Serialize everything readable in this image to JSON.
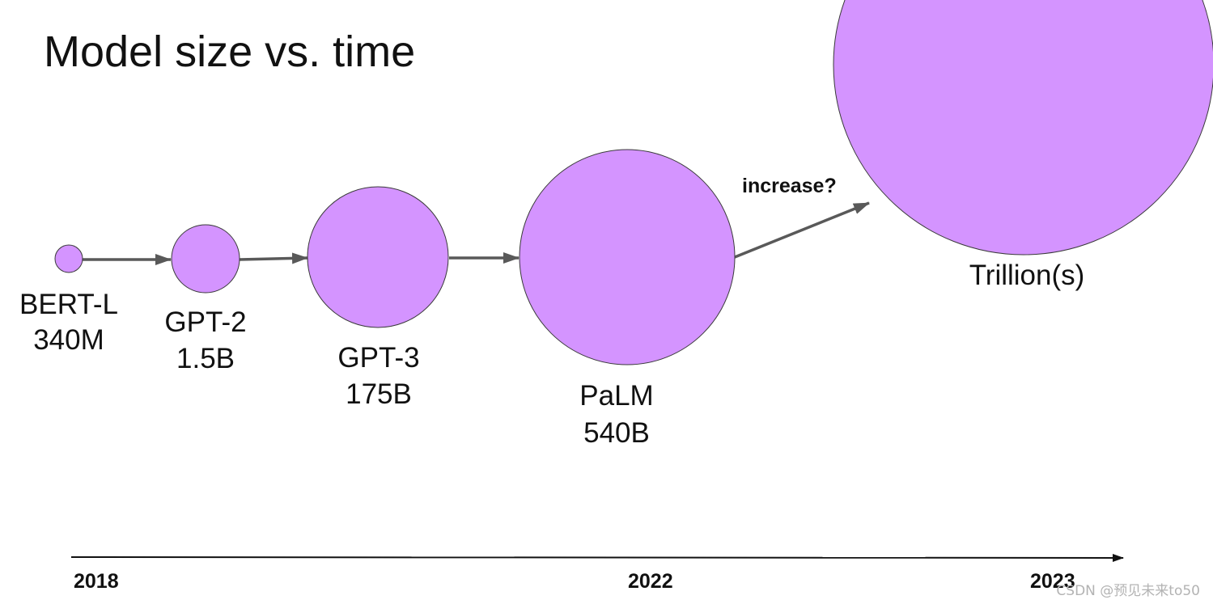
{
  "title": "Model size vs. time",
  "colors": {
    "bubble": "#d494ff",
    "arrow": "#595959",
    "timeline": "#111111"
  },
  "models": [
    {
      "name": "BERT-L",
      "size": "340M"
    },
    {
      "name": "GPT-2",
      "size": "1.5B"
    },
    {
      "name": "GPT-3",
      "size": "175B"
    },
    {
      "name": "PaLM",
      "size": "540B"
    }
  ],
  "future": {
    "label": "Trillion(s)",
    "arrow_label": "increase?"
  },
  "timeline": {
    "years": [
      "2018",
      "2022",
      "2023"
    ]
  },
  "watermark": "CSDN @预见未来to50"
}
